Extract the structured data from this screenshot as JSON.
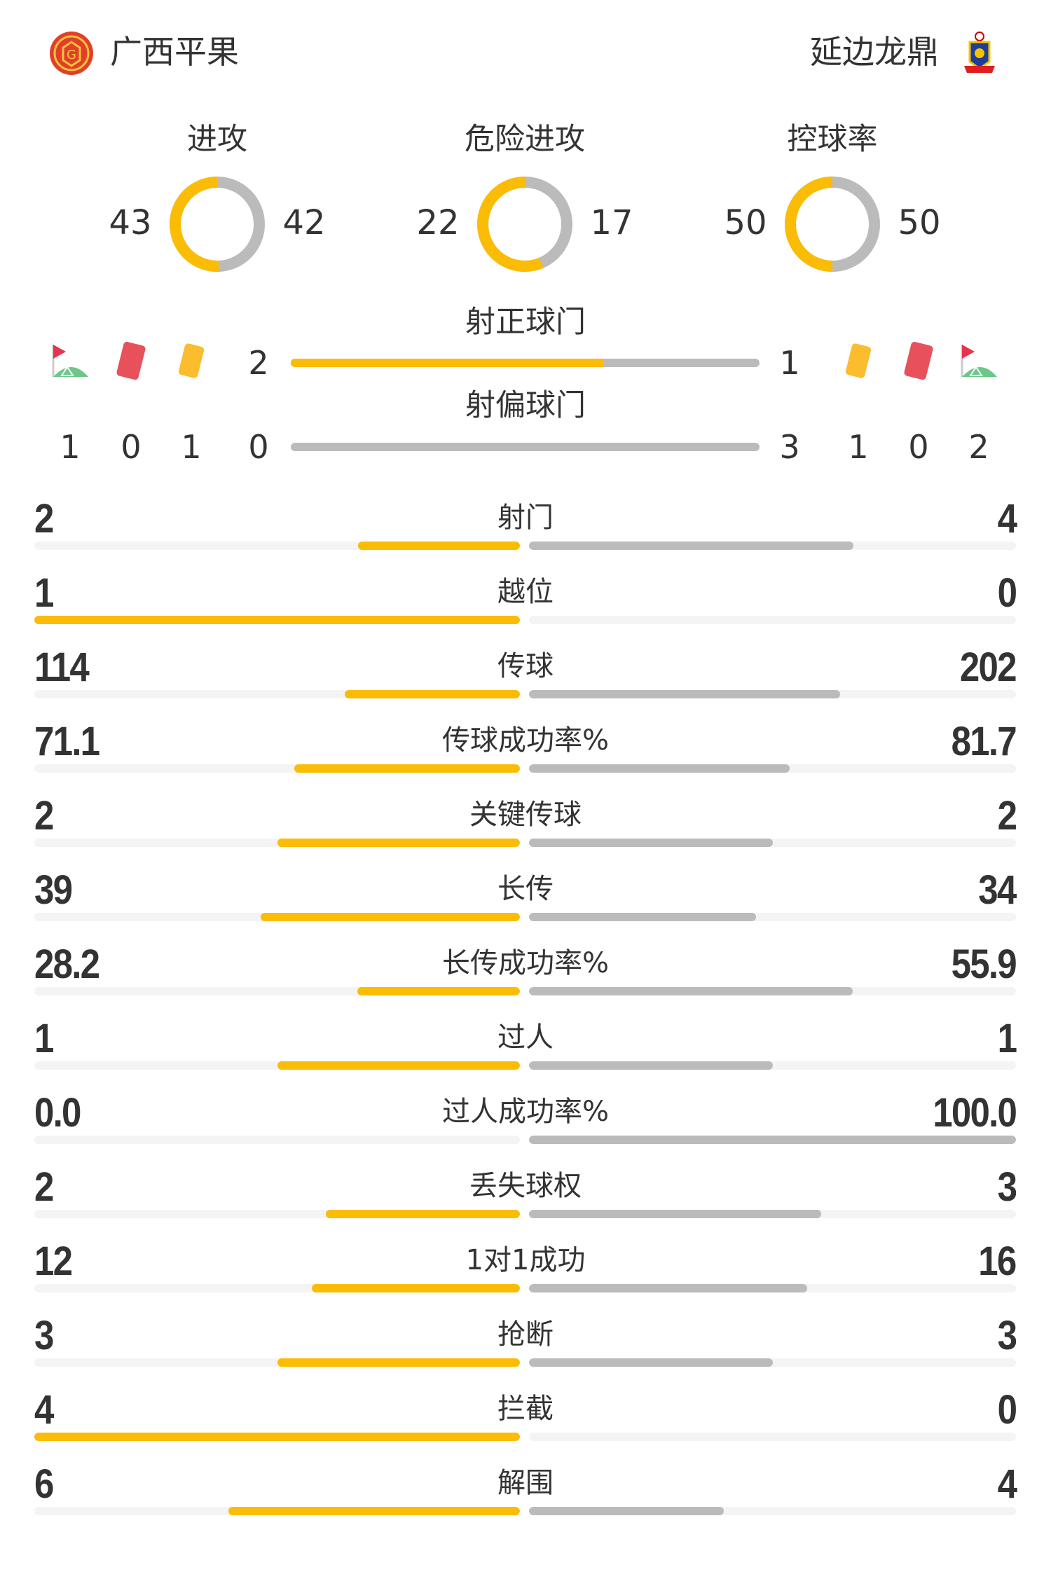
{
  "colors": {
    "home": "#fbbc05",
    "away": "#bbbbbb",
    "track": "#f4f4f4",
    "red_card": "#e8505b",
    "yellow_card": "#fbbc2e",
    "corner_flag": "#e8344a",
    "corner_green": "#6cc788"
  },
  "header": {
    "home": {
      "name": "广西平果",
      "logo_icon": "guangxi-pingguo-crest"
    },
    "away": {
      "name": "延边龙鼎",
      "logo_icon": "yanbian-longding-crest"
    }
  },
  "donuts": [
    {
      "label": "进攻",
      "home": 43,
      "away": 42
    },
    {
      "label": "危险进攻",
      "home": 22,
      "away": 17
    },
    {
      "label": "控球率",
      "home": 50,
      "away": 50
    }
  ],
  "shots_on_target": {
    "label": "射正球门",
    "home": 2,
    "away": 1
  },
  "shots_off_target": {
    "label": "射偏球门",
    "home": 0,
    "away": 3
  },
  "discipline": {
    "home": {
      "corners": 1,
      "red_cards": 0,
      "yellow_cards": 1
    },
    "away": {
      "yellow_cards": 1,
      "red_cards": 0,
      "corners": 2
    }
  },
  "stats": [
    {
      "label": "射门",
      "home": "2",
      "away": "4"
    },
    {
      "label": "越位",
      "home": "1",
      "away": "0"
    },
    {
      "label": "传球",
      "home": "114",
      "away": "202"
    },
    {
      "label": "传球成功率%",
      "home": "71.1",
      "away": "81.7"
    },
    {
      "label": "关键传球",
      "home": "2",
      "away": "2"
    },
    {
      "label": "长传",
      "home": "39",
      "away": "34"
    },
    {
      "label": "长传成功率%",
      "home": "28.2",
      "away": "55.9"
    },
    {
      "label": "过人",
      "home": "1",
      "away": "1"
    },
    {
      "label": "过人成功率%",
      "home": "0.0",
      "away": "100.0"
    },
    {
      "label": "丢失球权",
      "home": "2",
      "away": "3"
    },
    {
      "label": "1对1成功",
      "home": "12",
      "away": "16"
    },
    {
      "label": "抢断",
      "home": "3",
      "away": "3"
    },
    {
      "label": "拦截",
      "home": "4",
      "away": "0"
    },
    {
      "label": "解围",
      "home": "6",
      "away": "4"
    }
  ]
}
